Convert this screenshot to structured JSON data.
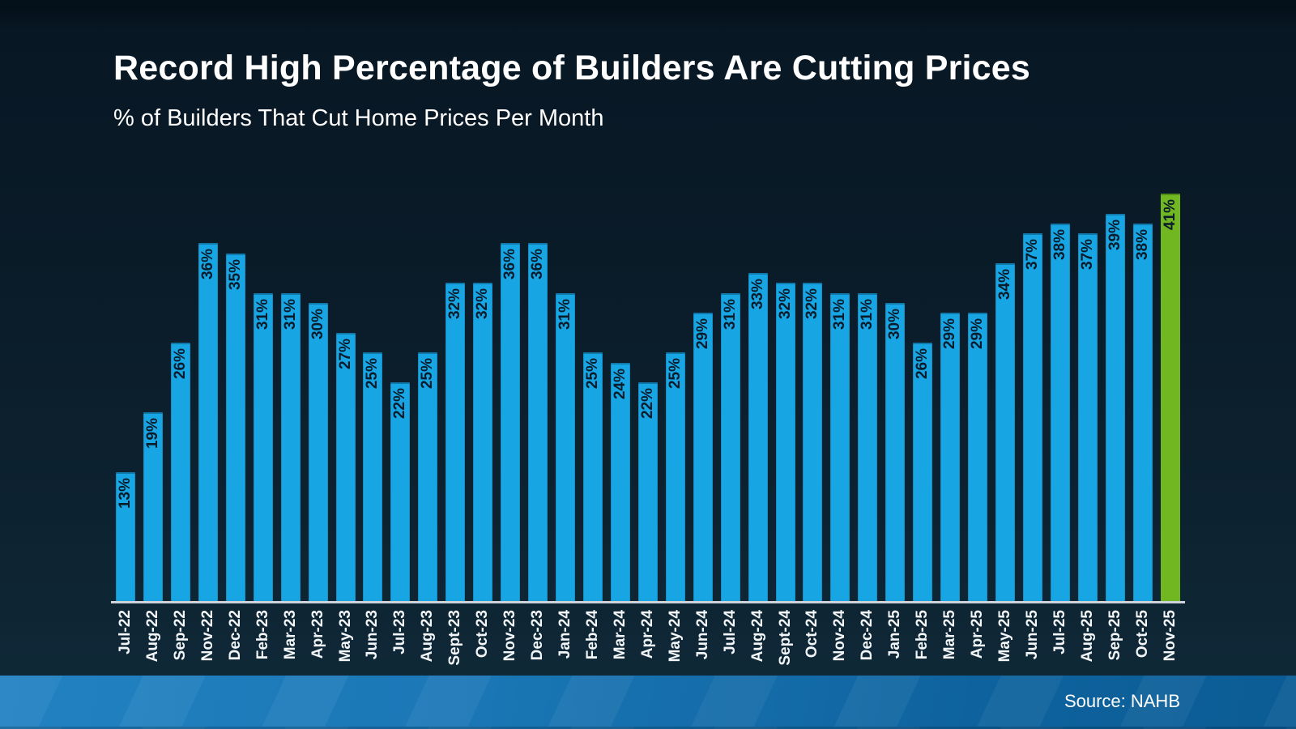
{
  "header": {
    "title": "Record High Percentage of Builders Are Cutting Prices",
    "subtitle": "% of Builders That Cut Home Prices Per Month"
  },
  "footer": {
    "source": "Source: NAHB"
  },
  "chart_data": {
    "type": "bar",
    "title": "Record High Percentage of Builders Are Cutting Prices",
    "subtitle": "% of Builders That Cut Home Prices Per Month",
    "xlabel": "",
    "ylabel": "",
    "ylim": [
      0,
      41
    ],
    "grid": false,
    "y_axis_visible": false,
    "legend": "none",
    "categories": [
      "Jul-22",
      "Aug-22",
      "Sep-22",
      "Nov-22",
      "Dec-22",
      "Feb-23",
      "Mar-23",
      "Apr-23",
      "May-23",
      "Jun-23",
      "Jul-23",
      "Aug-23",
      "Sept-23",
      "Oct-23",
      "Nov-23",
      "Dec-23",
      "Jan-24",
      "Feb-24",
      "Mar-24",
      "Apr-24",
      "May-24",
      "Jun-24",
      "Jul-24",
      "Aug-24",
      "Sept-24",
      "Oct-24",
      "Nov-24",
      "Dec-24",
      "Jan-25",
      "Feb-25",
      "Mar-25",
      "Apr-25",
      "May-25",
      "Jun-25",
      "Jul-25",
      "Aug-25",
      "Sep-25",
      "Oct-25",
      "Nov-25"
    ],
    "values": [
      13,
      19,
      26,
      36,
      35,
      31,
      31,
      30,
      27,
      25,
      22,
      25,
      32,
      32,
      36,
      36,
      31,
      25,
      24,
      22,
      25,
      29,
      31,
      33,
      32,
      32,
      31,
      31,
      30,
      26,
      29,
      29,
      34,
      37,
      38,
      37,
      39,
      38,
      41
    ],
    "value_labels": [
      "13%",
      "19%",
      "26%",
      "36%",
      "35%",
      "31%",
      "31%",
      "30%",
      "27%",
      "25%",
      "22%",
      "25%",
      "32%",
      "32%",
      "36%",
      "36%",
      "31%",
      "25%",
      "24%",
      "22%",
      "25%",
      "29%",
      "31%",
      "33%",
      "32%",
      "32%",
      "31%",
      "31%",
      "30%",
      "26%",
      "29%",
      "29%",
      "34%",
      "37%",
      "38%",
      "37%",
      "39%",
      "38%",
      "41%"
    ],
    "bar_color": "#17a5e3",
    "highlight_color": "#70b722",
    "highlight_index": 38,
    "value_label_color": "#0a1c2b",
    "axis_label_color": "#f2f6f8",
    "source": "Source: NAHB"
  }
}
